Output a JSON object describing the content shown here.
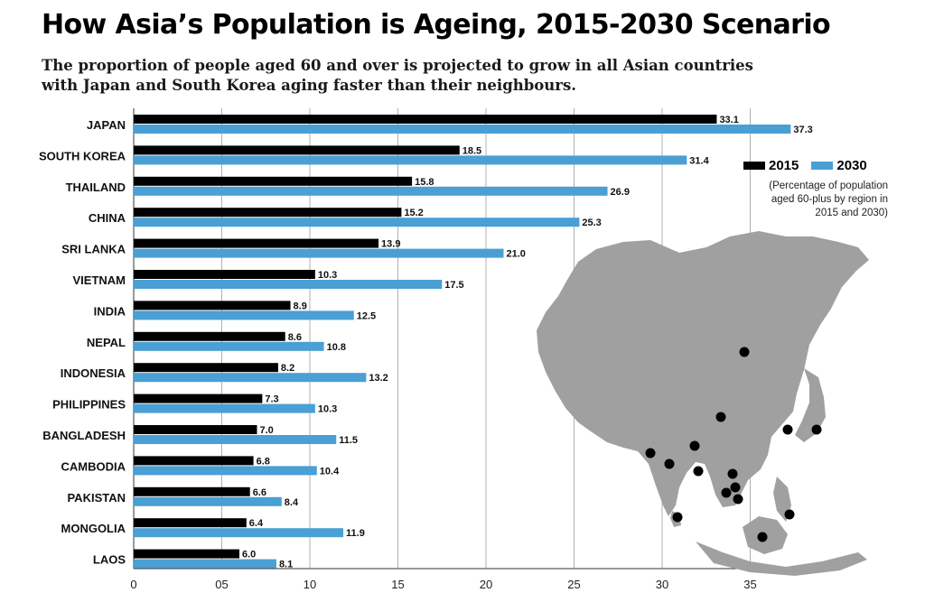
{
  "title": "How Asia’s Population is Ageing, 2015-2030 Scenario",
  "subtitle_line1": "The proportion of people aged 60 and over is projected to grow in all Asian countries",
  "subtitle_line2": "with Japan and South Korea aging faster than their neighbours.",
  "legend": {
    "label_2015": "2015",
    "label_2030": "2030",
    "note_line1": "(Percentage of population",
    "note_line2": "aged 60-plus by region in",
    "note_line3": "2015 and 2030)"
  },
  "colors": {
    "s2015": "#000000",
    "s2030": "#4a9fd4",
    "grid": "#b0b0b0",
    "map": "#a0a0a0",
    "dot": "#000000"
  },
  "chart_data": {
    "type": "bar",
    "orientation": "horizontal",
    "title": "How Asia’s Population is Ageing, 2015-2030 Scenario",
    "categories": [
      "JAPAN",
      "SOUTH KOREA",
      "THAILAND",
      "CHINA",
      "SRI LANKA",
      "VIETNAM",
      "INDIA",
      "NEPAL",
      "INDONESIA",
      "PHILIPPINES",
      "BANGLADESH",
      "CAMBODIA",
      "PAKISTAN",
      "MONGOLIA",
      "LAOS"
    ],
    "series": [
      {
        "name": "2015",
        "values": [
          33.1,
          18.5,
          15.8,
          15.2,
          13.9,
          10.3,
          8.9,
          8.6,
          8.2,
          7.3,
          7.0,
          6.8,
          6.6,
          6.4,
          6.0
        ]
      },
      {
        "name": "2030",
        "values": [
          37.3,
          31.4,
          26.9,
          25.3,
          21.0,
          17.5,
          12.5,
          10.8,
          13.2,
          10.3,
          11.5,
          10.4,
          8.4,
          11.9,
          8.1
        ]
      }
    ],
    "value_labels": {
      "2015": [
        "33.1",
        "18.5",
        "15.8",
        "15.2",
        "13.9",
        "10.3",
        "8.9",
        "8.6",
        "8.2",
        "7.3",
        "7.0",
        "6.8",
        "6.6",
        "6.4",
        "6.0"
      ],
      "2030": [
        "37.3",
        "31.4",
        "26.9",
        "25.3",
        "21.0",
        "17.5",
        "12.5",
        "10.8",
        "13.2",
        "10.3",
        "11.5",
        "10.4",
        "8.4",
        "11.9",
        "8.1"
      ]
    },
    "x_ticks": [
      0,
      5,
      10,
      15,
      20,
      25,
      30,
      35
    ],
    "x_tick_labels": [
      "0",
      "05",
      "10",
      "15",
      "20",
      "25",
      "30",
      "35"
    ],
    "xlim": [
      0,
      40
    ],
    "grid": true
  }
}
